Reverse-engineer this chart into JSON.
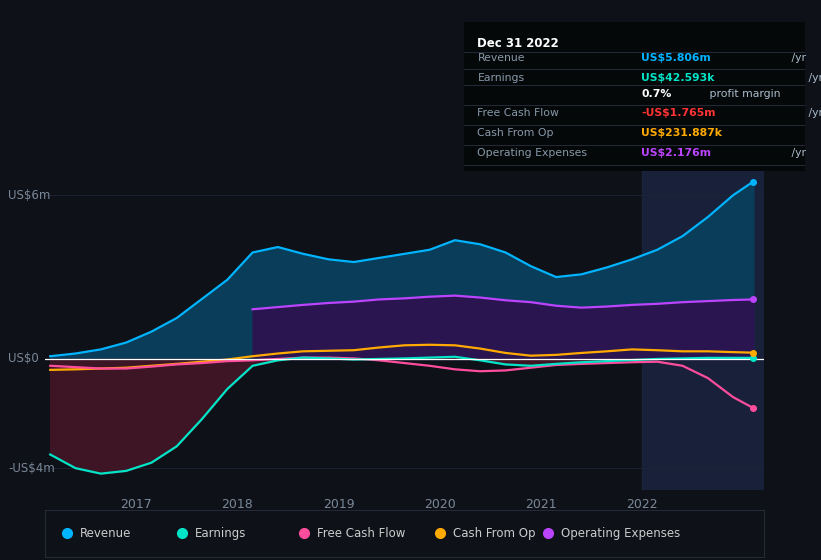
{
  "bg_color": "#0e1117",
  "plot_bg_color": "#0e1117",
  "ylabel_top": "US$6m",
  "ylabel_zero": "US$0",
  "ylabel_bottom": "-US$4m",
  "ylim": [
    -4.8,
    7.2
  ],
  "xlim": [
    2016.1,
    2023.2
  ],
  "xticks": [
    2017,
    2018,
    2019,
    2020,
    2021,
    2022
  ],
  "years": [
    2016.15,
    2016.4,
    2016.65,
    2016.9,
    2017.15,
    2017.4,
    2017.65,
    2017.9,
    2018.15,
    2018.4,
    2018.65,
    2018.9,
    2019.15,
    2019.4,
    2019.65,
    2019.9,
    2020.15,
    2020.4,
    2020.65,
    2020.9,
    2021.15,
    2021.4,
    2021.65,
    2021.9,
    2022.15,
    2022.4,
    2022.65,
    2022.9,
    2023.1
  ],
  "revenue": [
    0.1,
    0.2,
    0.35,
    0.6,
    1.0,
    1.5,
    2.2,
    2.9,
    3.9,
    4.1,
    3.85,
    3.65,
    3.55,
    3.7,
    3.85,
    4.0,
    4.35,
    4.2,
    3.9,
    3.4,
    3.0,
    3.1,
    3.35,
    3.65,
    4.0,
    4.5,
    5.2,
    6.0,
    6.5
  ],
  "earnings": [
    -3.5,
    -4.0,
    -4.2,
    -4.1,
    -3.8,
    -3.2,
    -2.2,
    -1.1,
    -0.25,
    -0.05,
    0.05,
    0.02,
    -0.02,
    0.0,
    0.02,
    0.05,
    0.08,
    -0.05,
    -0.2,
    -0.25,
    -0.18,
    -0.12,
    -0.08,
    -0.04,
    0.0,
    0.02,
    0.04,
    0.04,
    0.04
  ],
  "free_cash_flow": [
    -0.25,
    -0.3,
    -0.35,
    -0.35,
    -0.28,
    -0.2,
    -0.15,
    -0.08,
    -0.05,
    0.0,
    0.05,
    0.05,
    0.02,
    -0.05,
    -0.15,
    -0.25,
    -0.38,
    -0.45,
    -0.42,
    -0.32,
    -0.22,
    -0.18,
    -0.15,
    -0.12,
    -0.1,
    -0.25,
    -0.7,
    -1.4,
    -1.8
  ],
  "cash_from_op": [
    -0.4,
    -0.38,
    -0.35,
    -0.32,
    -0.25,
    -0.18,
    -0.1,
    -0.02,
    0.1,
    0.2,
    0.28,
    0.3,
    0.32,
    0.42,
    0.5,
    0.52,
    0.5,
    0.38,
    0.22,
    0.12,
    0.15,
    0.22,
    0.28,
    0.35,
    0.32,
    0.28,
    0.28,
    0.25,
    0.23
  ],
  "operating_expenses": [
    null,
    null,
    null,
    null,
    null,
    null,
    null,
    null,
    1.82,
    1.9,
    1.98,
    2.05,
    2.1,
    2.18,
    2.22,
    2.28,
    2.32,
    2.25,
    2.15,
    2.08,
    1.95,
    1.88,
    1.92,
    1.98,
    2.02,
    2.08,
    2.12,
    2.16,
    2.18
  ],
  "revenue_color": "#00b4ff",
  "revenue_fill": "#0a3d5a",
  "earnings_color": "#00e5c8",
  "earnings_fill": "#3d1525",
  "free_cash_flow_color": "#ff4d9e",
  "cash_from_op_color": "#ffaa00",
  "operating_expenses_color": "#bb44ff",
  "operating_expenses_fill": "#2a1550",
  "zero_line_color": "#ffffff",
  "grid_color": "#1e2535",
  "highlight_x_start": 2022.0,
  "highlight_x_end": 2023.2,
  "info_box_title": "Dec 31 2022",
  "info_box_rows": [
    {
      "label": "Revenue",
      "value": "US$5.806m",
      "unit": " /yr",
      "color": "#00b4ff"
    },
    {
      "label": "Earnings",
      "value": "US$42.593k",
      "unit": " /yr",
      "color": "#00e5c8"
    },
    {
      "label": "",
      "value": "0.7%",
      "unit": " profit margin",
      "color": "#ffffff"
    },
    {
      "label": "Free Cash Flow",
      "value": "-US$1.765m",
      "unit": " /yr",
      "color": "#ff3333"
    },
    {
      "label": "Cash From Op",
      "value": "US$231.887k",
      "unit": " /yr",
      "color": "#ffaa00"
    },
    {
      "label": "Operating Expenses",
      "value": "US$2.176m",
      "unit": " /yr",
      "color": "#bb44ff"
    }
  ],
  "legend_items": [
    {
      "label": "Revenue",
      "color": "#00b4ff"
    },
    {
      "label": "Earnings",
      "color": "#00e5c8"
    },
    {
      "label": "Free Cash Flow",
      "color": "#ff4d9e"
    },
    {
      "label": "Cash From Op",
      "color": "#ffaa00"
    },
    {
      "label": "Operating Expenses",
      "color": "#bb44ff"
    }
  ]
}
